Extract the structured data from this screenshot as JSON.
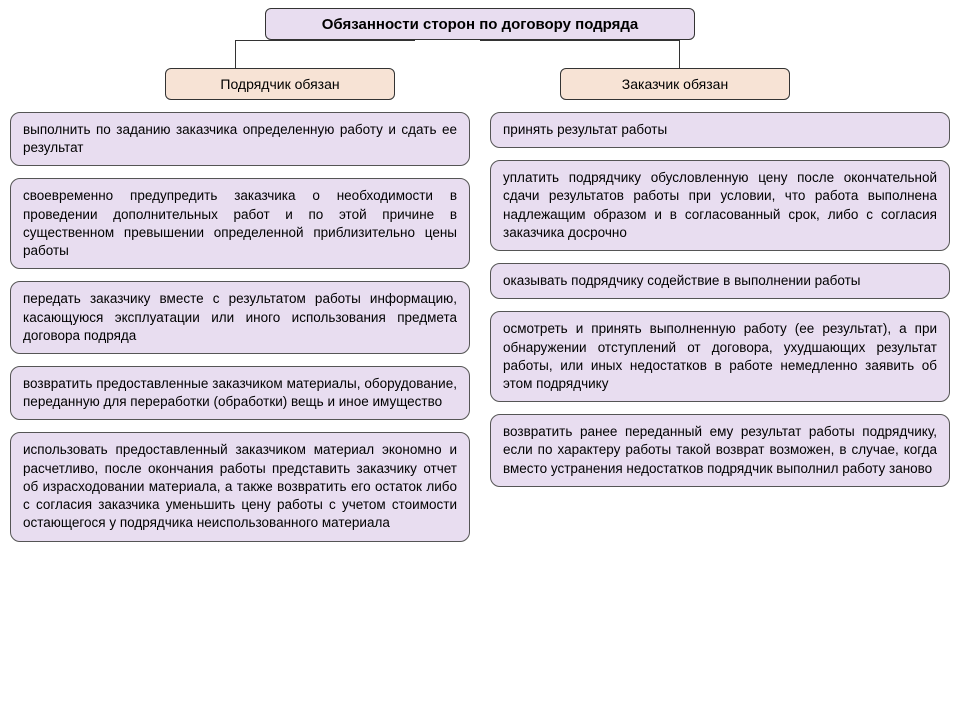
{
  "type": "flowchart",
  "background_color": "#ffffff",
  "title": {
    "text": "Обязанности сторон по договору подряда",
    "bg": "#e8ddf0",
    "border": "#333333",
    "fontsize": 15,
    "fontweight": "bold"
  },
  "sub_headers": {
    "left": {
      "text": "Подрядчик обязан",
      "bg": "#f7e3d5",
      "fontsize": 14
    },
    "right": {
      "text": "Заказчик обязан",
      "bg": "#f7e3d5",
      "fontsize": 14
    }
  },
  "box_style": {
    "bg": "#e8ddf0",
    "border": "#555555",
    "radius": 10,
    "fontsize": 13.5,
    "text_align": "justify"
  },
  "left_items": [
    "выполнить по заданию заказчика определенную работу и сдать ее результат",
    "своевременно предупредить заказчика о необходимости в проведении дополнительных работ и по этой причине в существенном превышении определенной приблизительно цены работы",
    "передать заказчику вместе с результатом работы информацию, касающуюся эксплуатации или иного использования предмета договора подряда",
    "возвратить предоставленные заказчиком материалы, оборудование, переданную для переработки (обработки) вещь и иное имущество",
    "использовать предоставленный заказчиком материал экономно и расчетливо, после окончания работы представить заказчику отчет об израсходовании материала, а также возвратить его остаток либо с согласия заказчика уменьшить цену работы с учетом стоимости остающегося у подрядчика неиспользованного материала"
  ],
  "right_items": [
    "принять результат работы",
    "уплатить подрядчику обусловленную цену после окончательной сдачи результатов работы при условии, что работа выполнена надлежащим образом и в согласованный срок, либо с согласия заказчика досрочно",
    "оказывать подрядчику содействие в выполнении работы",
    "осмотреть и принять выполненную работу (ее результат), а при обнаружении отступлений от договора, ухудшающих результат работы, или иных недостатков в работе немедленно заявить об этом подрядчику",
    "возвратить ранее переданный ему результат работы подрядчику, если по характеру работы такой возврат возможен, в случае, когда вместо устранения недостатков подрядчик выполнил работу заново"
  ]
}
